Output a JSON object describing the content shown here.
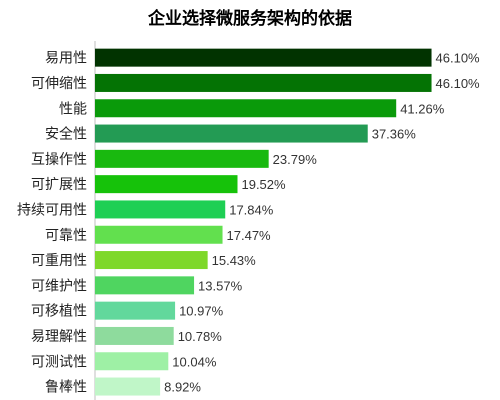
{
  "chart_data": {
    "type": "bar",
    "orientation": "horizontal",
    "title": "企业选择微服务架构的依据",
    "xlabel": "",
    "ylabel": "",
    "xlim": [
      0,
      50
    ],
    "grid": false,
    "legend": "none",
    "value_suffix": "%",
    "categories": [
      "易用性",
      "可伸缩性",
      "性能",
      "安全性",
      "互操作性",
      "可扩展性",
      "持续可用性",
      "可靠性",
      "可重用性",
      "可维护性",
      "可移植性",
      "易理解性",
      "可测试性",
      "鲁棒性"
    ],
    "values": [
      46.1,
      46.1,
      41.26,
      37.36,
      23.79,
      19.52,
      17.84,
      17.47,
      15.43,
      13.57,
      10.97,
      10.78,
      10.04,
      8.92
    ],
    "value_labels": [
      "46.10%",
      "46.10%",
      "41.26%",
      "37.36%",
      "23.79%",
      "19.52%",
      "17.84%",
      "17.47%",
      "15.43%",
      "13.57%",
      "10.97%",
      "10.78%",
      "10.04%",
      "8.92%"
    ],
    "colors": [
      "#013300",
      "#047304",
      "#0a9a0a",
      "#239b54",
      "#19b90f",
      "#16c20a",
      "#1ecf54",
      "#62e04e",
      "#7ed82a",
      "#4fd560",
      "#62d89c",
      "#8edb9d",
      "#9ef0a5",
      "#c0f6c8"
    ]
  }
}
